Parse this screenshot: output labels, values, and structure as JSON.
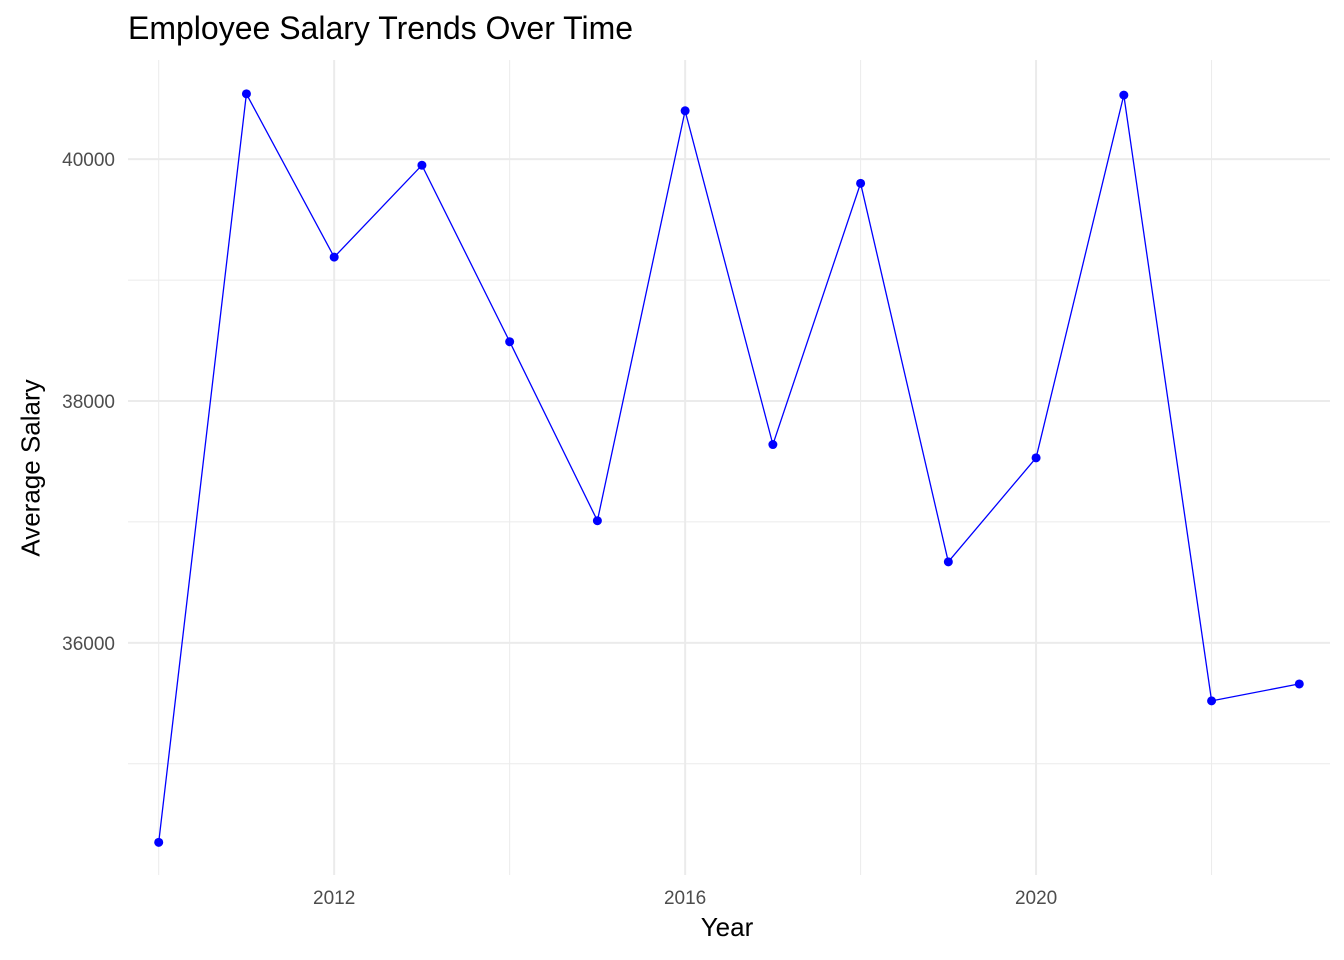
{
  "chart_data": {
    "type": "line",
    "title": "Employee Salary Trends Over Time",
    "xlabel": "Year",
    "ylabel": "Average Salary",
    "x": [
      2010,
      2011,
      2012,
      2013,
      2014,
      2015,
      2016,
      2017,
      2018,
      2019,
      2020,
      2021,
      2022,
      2023
    ],
    "y": [
      34350,
      40540,
      39190,
      39950,
      38490,
      37010,
      40400,
      37640,
      39800,
      36670,
      37530,
      40530,
      35520,
      35660
    ],
    "xlim": [
      2009.65,
      2023.35
    ],
    "ylim": [
      34080,
      40820
    ],
    "x_ticks": [
      2012,
      2016,
      2020
    ],
    "x_tick_labels": [
      "2012",
      "2016",
      "2020"
    ],
    "x_minor_ticks": [
      2010,
      2014,
      2018,
      2022
    ],
    "y_ticks": [
      36000,
      38000,
      40000
    ],
    "y_tick_labels": [
      "36000",
      "38000",
      "40000"
    ],
    "y_minor_ticks": [
      35000,
      37000,
      39000
    ],
    "grid": true,
    "legend": "none",
    "line_color": "#0000ff",
    "point_color": "#0000ff",
    "grid_color": "#ebebeb"
  }
}
